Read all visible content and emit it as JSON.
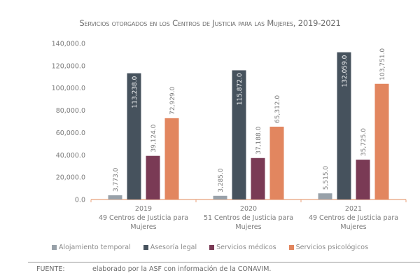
{
  "chart_data": {
    "type": "bar",
    "title": "Servicios otorgados en los Centros de Justicia para las Mujeres, 2019-2021",
    "categories": [
      {
        "year": "2019",
        "line2": "49  Centros de Justicia para",
        "line3": "Mujeres"
      },
      {
        "year": "2020",
        "line2": "51 Centros de Justicia para",
        "line3": "Mujeres"
      },
      {
        "year": "2021",
        "line2": "49  Centros de Justicia para",
        "line3": "Mujeres"
      }
    ],
    "series": [
      {
        "name": "Alojamiento temporal",
        "color": "#98a1a9",
        "values": [
          3773.0,
          3285.0,
          5515.0
        ],
        "labels": [
          "3,773.0",
          "3,285.0",
          "5,515.0"
        ]
      },
      {
        "name": "Asesoría legal",
        "color": "#46525d",
        "values": [
          113238.0,
          115872.0,
          132059.0
        ],
        "labels": [
          "113,238.0",
          "115,872.0",
          "132,059.0"
        ]
      },
      {
        "name": "Servicios médicos",
        "color": "#7a3a55",
        "values": [
          39124.0,
          37188.0,
          35725.0
        ],
        "labels": [
          "39,124.0",
          "37,188.0",
          "35,725.0"
        ]
      },
      {
        "name": "Servicios psicológicos",
        "color": "#e2865f",
        "values": [
          72929.0,
          65312.0,
          103751.0
        ],
        "labels": [
          "72,929.0",
          "65,312.0",
          "103,751.0"
        ]
      }
    ],
    "yticks": [
      "0.0",
      "20,000.0",
      "40,000.0",
      "60,000.0",
      "80,000.0",
      "100,000.0",
      "120,000.0",
      "140,000.0"
    ],
    "ylim": [
      0,
      140000
    ],
    "grid": false,
    "legend": "bottom",
    "axis_color": "#e8a07a"
  },
  "source": {
    "label": "FUENTE:",
    "text": "elaborado por la ASF con información de la CONAVIM."
  }
}
